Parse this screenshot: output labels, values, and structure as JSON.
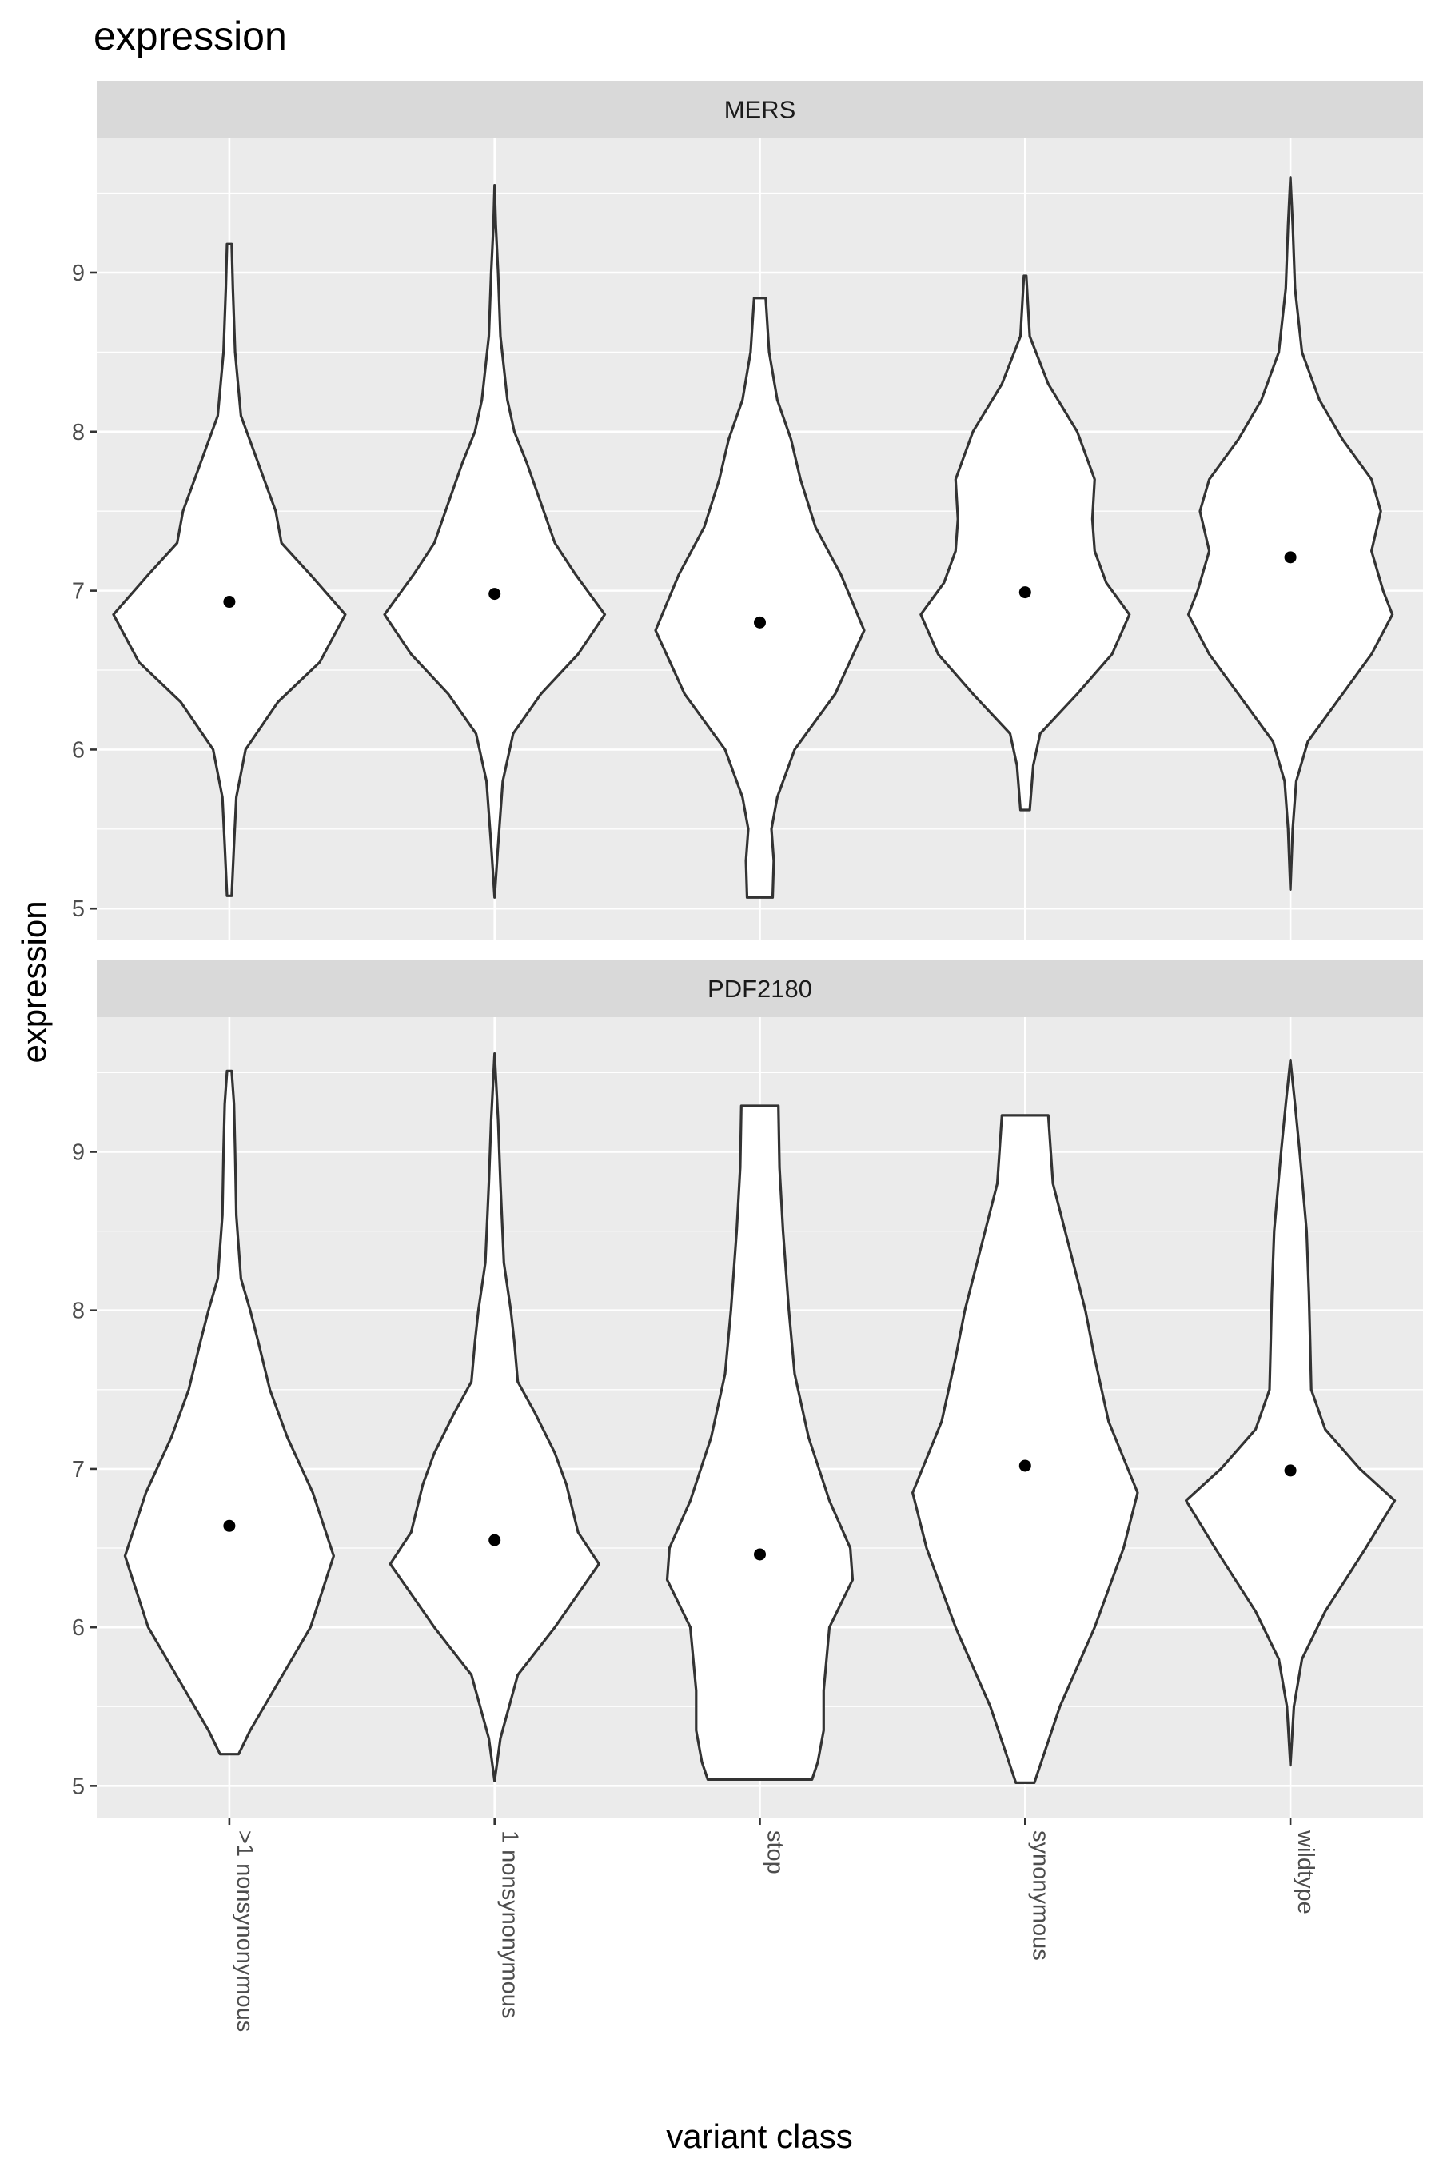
{
  "chart_data": {
    "type": "violin",
    "title": "expression",
    "xlabel": "variant class",
    "ylabel": "expression",
    "categories": [
      ">1 nonsynonymous",
      "1 nonsynonymous",
      "stop",
      "synonymous",
      "wildtype"
    ],
    "ylim": [
      4.8,
      9.85
    ],
    "yticks": [
      5,
      6,
      7,
      8,
      9
    ],
    "grid": true,
    "x_tick_rotation": 90,
    "point_summary": "mean",
    "colors": {
      "panel_background": "#ebebeb",
      "strip_background": "#d9d9d9",
      "violin_fill": "#ffffff",
      "violin_outline": "#333333",
      "point": "#000000",
      "grid": "#ffffff"
    },
    "facets": [
      {
        "label": "MERS",
        "violins": [
          {
            "category": ">1 nonsynonymous",
            "mean": 6.93,
            "min": 5.08,
            "max": 9.18,
            "profile": [
              [
                5.08,
                0.02
              ],
              [
                5.4,
                0.04
              ],
              [
                5.7,
                0.06
              ],
              [
                6.0,
                0.14
              ],
              [
                6.3,
                0.42
              ],
              [
                6.55,
                0.78
              ],
              [
                6.85,
                1.0
              ],
              [
                7.1,
                0.7
              ],
              [
                7.3,
                0.45
              ],
              [
                7.5,
                0.4
              ],
              [
                7.7,
                0.3
              ],
              [
                7.9,
                0.2
              ],
              [
                8.1,
                0.1
              ],
              [
                8.5,
                0.05
              ],
              [
                8.9,
                0.03
              ],
              [
                9.18,
                0.02
              ]
            ]
          },
          {
            "category": "1 nonsynonymous",
            "mean": 6.98,
            "min": 5.07,
            "max": 9.55,
            "profile": [
              [
                5.07,
                0.0
              ],
              [
                5.4,
                0.03
              ],
              [
                5.8,
                0.07
              ],
              [
                6.1,
                0.16
              ],
              [
                6.35,
                0.4
              ],
              [
                6.6,
                0.72
              ],
              [
                6.85,
                0.95
              ],
              [
                7.1,
                0.7
              ],
              [
                7.3,
                0.52
              ],
              [
                7.55,
                0.4
              ],
              [
                7.8,
                0.28
              ],
              [
                8.0,
                0.17
              ],
              [
                8.2,
                0.11
              ],
              [
                8.6,
                0.05
              ],
              [
                9.0,
                0.03
              ],
              [
                9.3,
                0.01
              ],
              [
                9.55,
                0.0
              ]
            ]
          },
          {
            "category": "stop",
            "mean": 6.8,
            "min": 5.07,
            "max": 8.84,
            "profile": [
              [
                5.07,
                0.11
              ],
              [
                5.3,
                0.12
              ],
              [
                5.5,
                0.1
              ],
              [
                5.7,
                0.15
              ],
              [
                6.0,
                0.3
              ],
              [
                6.35,
                0.65
              ],
              [
                6.75,
                0.9
              ],
              [
                7.1,
                0.7
              ],
              [
                7.4,
                0.48
              ],
              [
                7.7,
                0.35
              ],
              [
                7.95,
                0.27
              ],
              [
                8.2,
                0.15
              ],
              [
                8.5,
                0.08
              ],
              [
                8.84,
                0.05
              ]
            ]
          },
          {
            "category": "synonymous",
            "mean": 6.99,
            "min": 5.62,
            "max": 8.98,
            "profile": [
              [
                5.62,
                0.04
              ],
              [
                5.9,
                0.07
              ],
              [
                6.1,
                0.13
              ],
              [
                6.35,
                0.45
              ],
              [
                6.6,
                0.75
              ],
              [
                6.85,
                0.9
              ],
              [
                7.05,
                0.7
              ],
              [
                7.25,
                0.6
              ],
              [
                7.45,
                0.58
              ],
              [
                7.7,
                0.6
              ],
              [
                8.0,
                0.45
              ],
              [
                8.3,
                0.2
              ],
              [
                8.6,
                0.04
              ],
              [
                8.98,
                0.01
              ]
            ]
          },
          {
            "category": "wildtype",
            "mean": 7.21,
            "min": 5.12,
            "max": 9.6,
            "profile": [
              [
                5.12,
                0.0
              ],
              [
                5.5,
                0.02
              ],
              [
                5.8,
                0.05
              ],
              [
                6.05,
                0.15
              ],
              [
                6.35,
                0.45
              ],
              [
                6.6,
                0.7
              ],
              [
                6.85,
                0.88
              ],
              [
                7.0,
                0.8
              ],
              [
                7.25,
                0.7
              ],
              [
                7.5,
                0.78
              ],
              [
                7.7,
                0.7
              ],
              [
                7.95,
                0.45
              ],
              [
                8.2,
                0.25
              ],
              [
                8.5,
                0.1
              ],
              [
                8.9,
                0.04
              ],
              [
                9.3,
                0.02
              ],
              [
                9.6,
                0.0
              ]
            ]
          }
        ]
      },
      {
        "label": "PDF2180",
        "violins": [
          {
            "category": ">1 nonsynonymous",
            "mean": 6.64,
            "min": 5.2,
            "max": 9.51,
            "profile": [
              [
                5.2,
                0.08
              ],
              [
                5.35,
                0.18
              ],
              [
                5.65,
                0.42
              ],
              [
                6.0,
                0.7
              ],
              [
                6.45,
                0.9
              ],
              [
                6.85,
                0.72
              ],
              [
                7.2,
                0.5
              ],
              [
                7.5,
                0.35
              ],
              [
                7.8,
                0.25
              ],
              [
                8.0,
                0.18
              ],
              [
                8.2,
                0.1
              ],
              [
                8.6,
                0.06
              ],
              [
                9.0,
                0.05
              ],
              [
                9.3,
                0.04
              ],
              [
                9.51,
                0.02
              ]
            ]
          },
          {
            "category": "1 nonsynonymous",
            "mean": 6.55,
            "min": 5.03,
            "max": 9.62,
            "profile": [
              [
                5.03,
                0.0
              ],
              [
                5.3,
                0.05
              ],
              [
                5.7,
                0.2
              ],
              [
                6.0,
                0.52
              ],
              [
                6.4,
                0.9
              ],
              [
                6.6,
                0.72
              ],
              [
                6.9,
                0.62
              ],
              [
                7.1,
                0.52
              ],
              [
                7.35,
                0.35
              ],
              [
                7.55,
                0.2
              ],
              [
                7.8,
                0.17
              ],
              [
                8.0,
                0.14
              ],
              [
                8.3,
                0.08
              ],
              [
                8.8,
                0.05
              ],
              [
                9.2,
                0.03
              ],
              [
                9.62,
                0.0
              ]
            ]
          },
          {
            "category": "stop",
            "mean": 6.46,
            "min": 5.04,
            "max": 9.29,
            "profile": [
              [
                5.04,
                0.45
              ],
              [
                5.15,
                0.5
              ],
              [
                5.35,
                0.55
              ],
              [
                5.6,
                0.55
              ],
              [
                6.0,
                0.6
              ],
              [
                6.3,
                0.8
              ],
              [
                6.5,
                0.78
              ],
              [
                6.8,
                0.6
              ],
              [
                7.2,
                0.42
              ],
              [
                7.6,
                0.3
              ],
              [
                8.0,
                0.25
              ],
              [
                8.5,
                0.2
              ],
              [
                8.9,
                0.17
              ],
              [
                9.29,
                0.16
              ]
            ]
          },
          {
            "category": "synonymous",
            "mean": 7.02,
            "min": 5.02,
            "max": 9.23,
            "profile": [
              [
                5.02,
                0.08
              ],
              [
                5.5,
                0.3
              ],
              [
                6.0,
                0.6
              ],
              [
                6.5,
                0.85
              ],
              [
                6.85,
                0.97
              ],
              [
                7.3,
                0.72
              ],
              [
                7.7,
                0.6
              ],
              [
                8.0,
                0.52
              ],
              [
                8.4,
                0.38
              ],
              [
                8.8,
                0.24
              ],
              [
                9.23,
                0.2
              ]
            ]
          },
          {
            "category": "wildtype",
            "mean": 6.99,
            "min": 5.13,
            "max": 9.58,
            "profile": [
              [
                5.13,
                0.0
              ],
              [
                5.5,
                0.03
              ],
              [
                5.8,
                0.1
              ],
              [
                6.1,
                0.3
              ],
              [
                6.5,
                0.65
              ],
              [
                6.8,
                0.9
              ],
              [
                7.0,
                0.6
              ],
              [
                7.25,
                0.3
              ],
              [
                7.5,
                0.18
              ],
              [
                7.8,
                0.17
              ],
              [
                8.1,
                0.16
              ],
              [
                8.5,
                0.14
              ],
              [
                9.0,
                0.08
              ],
              [
                9.3,
                0.04
              ],
              [
                9.58,
                0.0
              ]
            ]
          }
        ]
      }
    ]
  }
}
